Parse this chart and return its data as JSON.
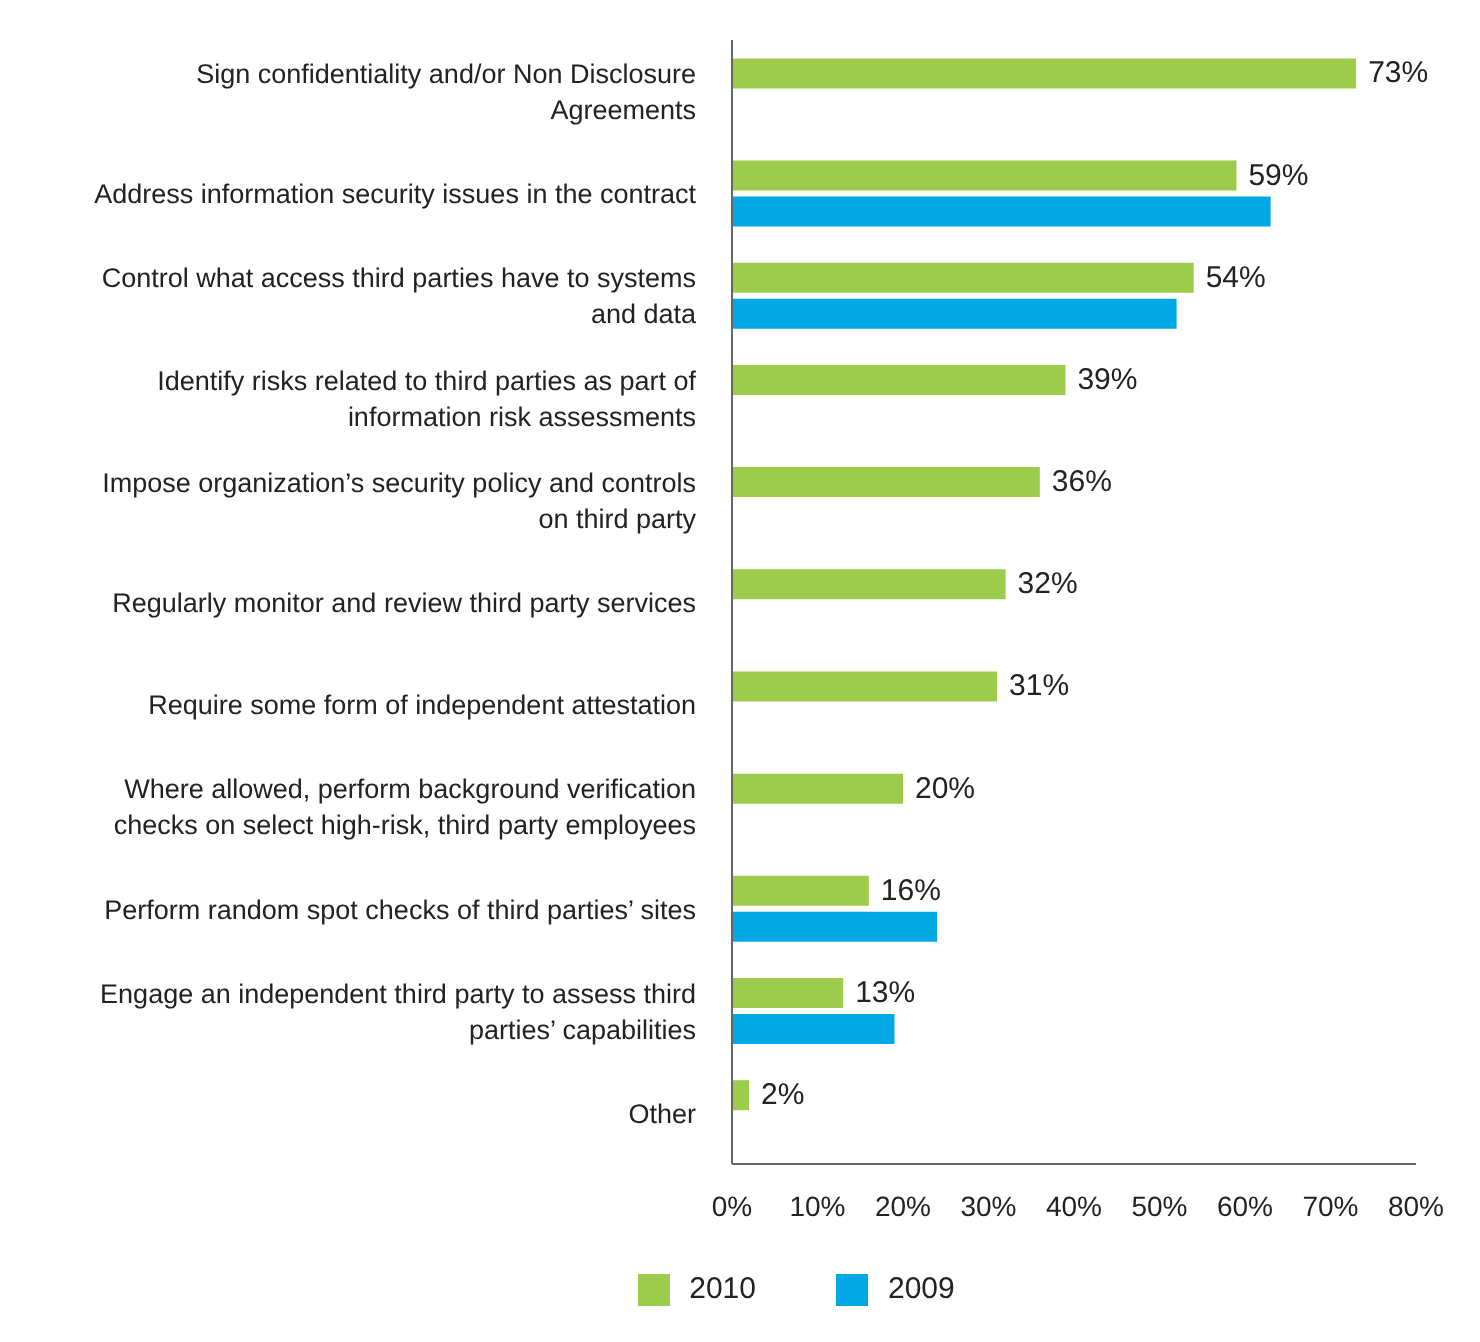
{
  "chart_data": {
    "type": "bar",
    "orientation": "horizontal",
    "categories": [
      "Sign confidentiality and/or Non Disclosure Agreements",
      "Address information security issues in the contract",
      "Control what access third parties have to systems and data",
      "Identify risks related to third parties as part of information risk assessments",
      "Impose organization’s security policy and controls on third party",
      "Regularly monitor and review third party services",
      "Require some form of independent attestation",
      "Where allowed, perform background verification checks on select high-risk, third party employees",
      "Perform random spot checks of third parties’ sites",
      "Engage an independent third party to assess third parties’ capabilities",
      "Other"
    ],
    "series": [
      {
        "name": "2010",
        "color": "#9dcb4b",
        "values": [
          73,
          59,
          54,
          39,
          36,
          32,
          31,
          20,
          16,
          13,
          2
        ],
        "value_labels": [
          "73%",
          "59%",
          "54%",
          "39%",
          "36%",
          "32%",
          "31%",
          "20%",
          "16%",
          "13%",
          "2%"
        ]
      },
      {
        "name": "2009",
        "color": "#00a9e4",
        "values": [
          null,
          63,
          52,
          null,
          null,
          null,
          null,
          null,
          24,
          19,
          null
        ]
      }
    ],
    "xlim": [
      0,
      80
    ],
    "xticks": [
      {
        "value": 0,
        "label": "0%"
      },
      {
        "value": 10,
        "label": "10%"
      },
      {
        "value": 20,
        "label": "20%"
      },
      {
        "value": 30,
        "label": "30%"
      },
      {
        "value": 40,
        "label": "40%"
      },
      {
        "value": 50,
        "label": "50%"
      },
      {
        "value": 60,
        "label": "60%"
      },
      {
        "value": 70,
        "label": "70%"
      },
      {
        "value": 80,
        "label": "80%"
      }
    ],
    "grid": false,
    "legend": "bottom"
  }
}
